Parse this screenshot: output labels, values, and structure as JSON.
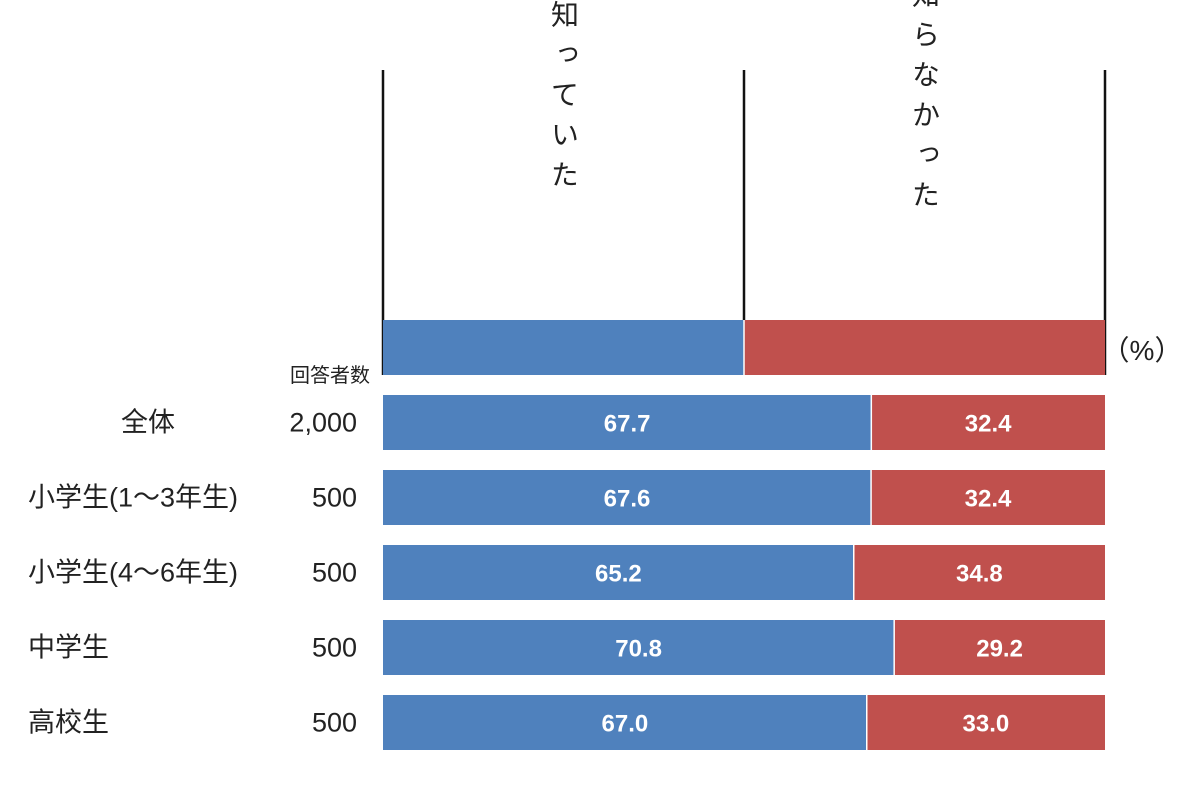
{
  "chart_data": {
    "type": "bar",
    "orientation": "horizontal",
    "stacked": true,
    "unit_label": "（%）",
    "count_header": "回答者数",
    "series": [
      {
        "name": "知っていた",
        "color": "#4f81bd",
        "values": [
          67.7,
          67.6,
          65.2,
          70.8,
          67.0
        ]
      },
      {
        "name": "知らなかった",
        "color": "#c0504d",
        "values": [
          32.4,
          32.4,
          34.8,
          29.2,
          33.0
        ]
      }
    ],
    "categories": [
      "全体",
      "小学生(1～3年生)",
      "小学生(4～6年生)",
      "中学生",
      "高校生"
    ],
    "respondents": [
      "2,000",
      "500",
      "500",
      "500",
      "500"
    ],
    "xlim": [
      0,
      100
    ]
  }
}
